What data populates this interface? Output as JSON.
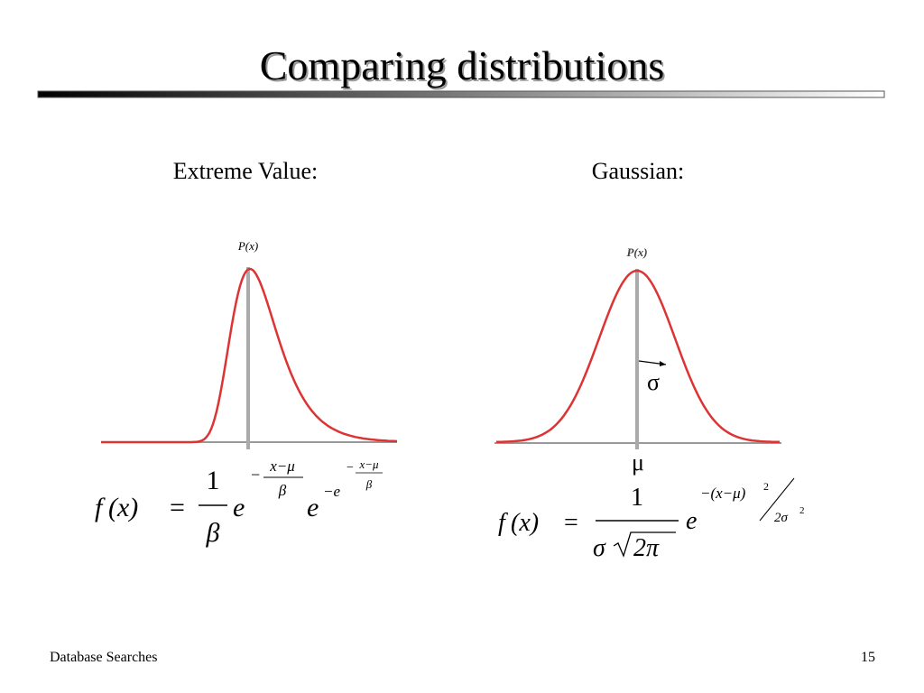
{
  "title": "Comparing distributions",
  "panels": [
    {
      "heading": "Extreme Value:",
      "axis_label": "P(x)",
      "formula": {
        "lhs_f": "f",
        "lhs_x": "(x)",
        "equals": "=",
        "numerator": "1",
        "denominator": "β",
        "e1": "e",
        "exp1_sign": "−",
        "exp1_num": "x−μ",
        "exp1_den": "β",
        "e2": "e",
        "exp2_base": "−e",
        "exp2_sign": "−",
        "exp2_num": "x−μ",
        "exp2_den": "β"
      }
    },
    {
      "heading": "Gaussian:",
      "axis_label": "P(x)",
      "sigma": "σ",
      "mu": "μ",
      "formula": {
        "lhs_f": "f",
        "lhs_x": "(x)",
        "equals": "=",
        "numerator": "1",
        "denominator_sigma": "σ",
        "denominator_root": "2π",
        "e": "e",
        "exp_num": "−(x−μ)",
        "exp_power": "2",
        "exp_den": "2σ",
        "exp_den_power": "2"
      }
    }
  ],
  "footer": {
    "left": "Database Searches",
    "page": "15"
  }
}
